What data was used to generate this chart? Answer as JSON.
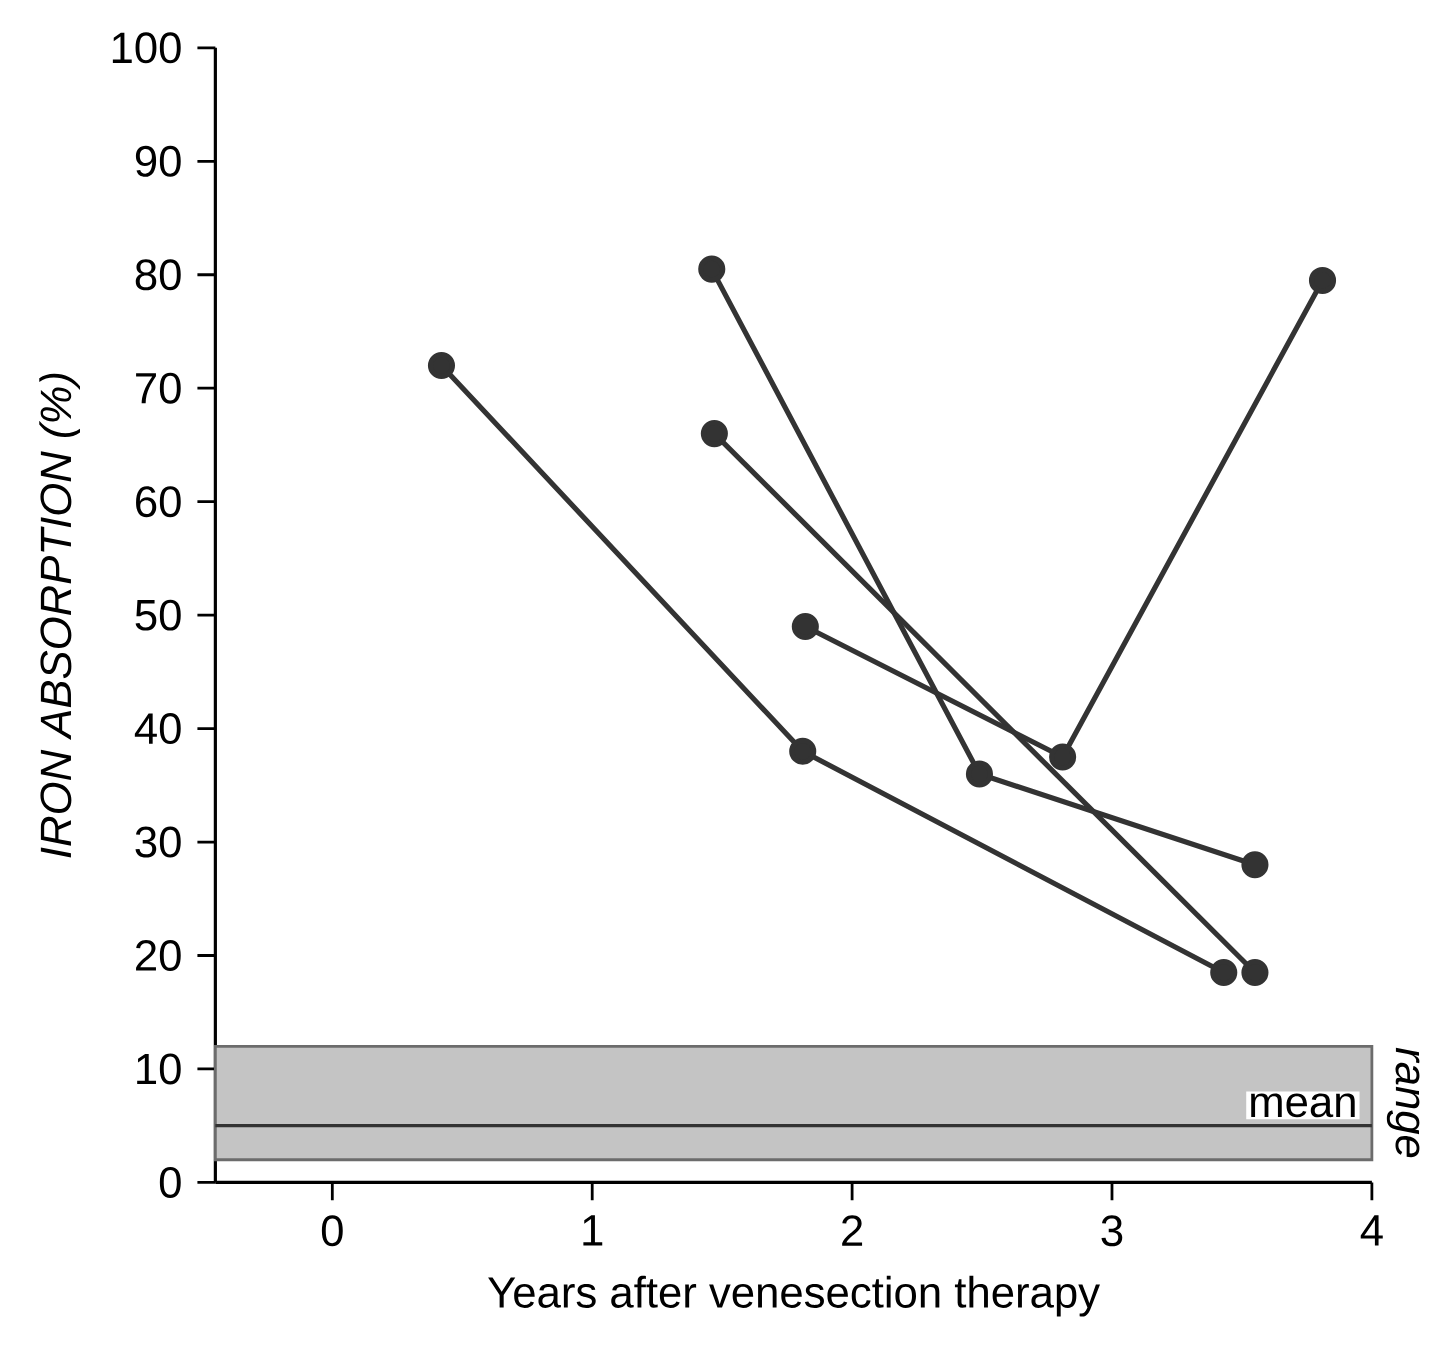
{
  "chart_data": {
    "type": "line",
    "xlabel": "Years after venesection therapy",
    "ylabel": "IRON ABSORPTION (%)",
    "xlim": [
      -0.45,
      4
    ],
    "ylim": [
      0,
      100
    ],
    "xticks": [
      0,
      1,
      2,
      3,
      4
    ],
    "yticks": [
      0,
      10,
      20,
      30,
      40,
      50,
      60,
      70,
      80,
      90,
      100
    ],
    "marker": "circle",
    "line_style": "solid",
    "series": [
      {
        "color": "#333333",
        "x": [
          0.42,
          1.81,
          3.43
        ],
        "values": [
          72,
          38,
          18.5
        ]
      },
      {
        "color": "#333333",
        "x": [
          1.46,
          2.49,
          3.55
        ],
        "values": [
          80.5,
          36,
          28
        ]
      },
      {
        "color": "#333333",
        "x": [
          1.47,
          3.55
        ],
        "values": [
          66,
          18.5
        ]
      },
      {
        "color": "#333333",
        "x": [
          1.82,
          2.81,
          3.81
        ],
        "values": [
          49,
          37.5,
          79.5
        ]
      }
    ],
    "ref_lines": [
      {
        "axis": "y",
        "value": 5,
        "label": "mean",
        "color": "#333333"
      }
    ],
    "bands": [
      {
        "axis": "y",
        "from": 2,
        "to": 12,
        "label": "range",
        "color": "#c4c4c4"
      }
    ]
  }
}
